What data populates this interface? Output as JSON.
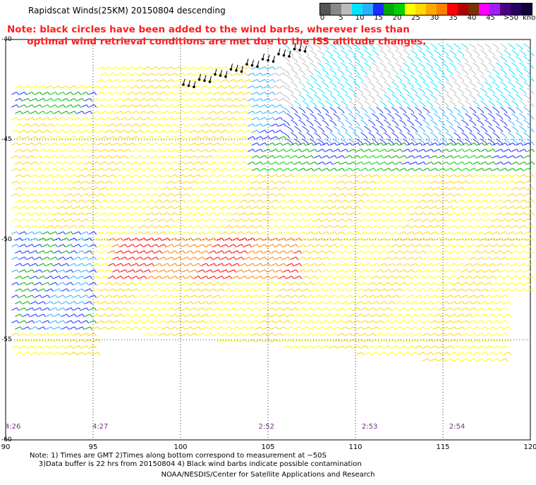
{
  "title": "Rapidscat Winds(25KM) 20150804 descending",
  "note_red_line1": "Note: black circles have been added to the wind barbs, wherever less than",
  "note_red_line2": "optimal wind retrieval conditions are met due to the ISS altitude changes.",
  "scale": {
    "unit": "knots",
    "colors": [
      "#555555",
      "#888888",
      "#bbbbbb",
      "#00e4ff",
      "#2ab0ff",
      "#1a2dff",
      "#00aa00",
      "#00d000",
      "#ffff00",
      "#ffd800",
      "#ffa800",
      "#ff7f00",
      "#ff0000",
      "#b00000",
      "#7a3000",
      "#ff00ff",
      "#a020f0",
      "#4b0082",
      "#2a0060",
      "#12003a"
    ],
    "labels": [
      "0",
      "5",
      "10",
      "15",
      "20",
      "25",
      "30",
      "35",
      "40",
      "45",
      ">50"
    ],
    "knots_label": "knots"
  },
  "longitudes": [
    "90",
    "95",
    "100",
    "105",
    "110",
    "115",
    "120"
  ],
  "latitudes": [
    "-40",
    "-45",
    "-50",
    "-55",
    "-60"
  ],
  "times": [
    {
      "label": "4:26",
      "lon": 90.2
    },
    {
      "label": "4:27",
      "lon": 95.2
    },
    {
      "label": "2:52",
      "lon": 104.7
    },
    {
      "label": "2:53",
      "lon": 110.6
    },
    {
      "label": "2:54",
      "lon": 115.6
    }
  ],
  "bottom_note_line1": "Note: 1) Times are GMT 2)Times along bottom correspond to measurement at ~50S",
  "bottom_note_line2": "3)Data buffer is 22 hrs from 20150804 4) Black wind barbs indicate possible contamination",
  "credit": "NOAA/NESDIS/Center for Satellite Applications and Research"
}
